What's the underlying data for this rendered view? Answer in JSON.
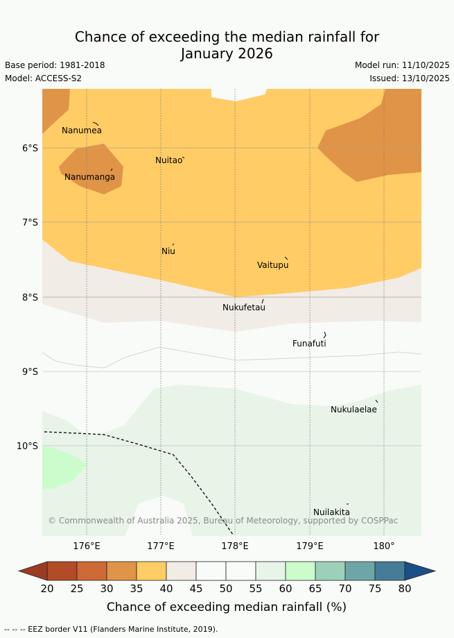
{
  "title_line1": "Chance of exceeding the median rainfall for",
  "title_line2": "January 2026",
  "meta": {
    "base_period": "Base period: 1981-2018",
    "model": "Model: ACCESS-S2",
    "model_run": "Model run: 11/10/2025",
    "issued": "Issued: 13/10/2025"
  },
  "map": {
    "lat_labels": [
      "6°S",
      "7°S",
      "8°S",
      "9°S",
      "10°S"
    ],
    "lon_labels": [
      "176°E",
      "177°E",
      "178°E",
      "179°E",
      "180°"
    ],
    "places": [
      "Nanumea",
      "Nuitao",
      "Nanumanga",
      "Niu",
      "Vaitupu",
      "Nukufetau",
      "Funafuti",
      "Nukulaelae",
      "Nuilakita"
    ],
    "copyright": "© Commonwealth of Australia 2025, Bureau of Meteorology, supported by COSPPac"
  },
  "colorbar": {
    "ticks": [
      "20",
      "25",
      "30",
      "35",
      "40",
      "45",
      "50",
      "55",
      "60",
      "65",
      "70",
      "75",
      "80"
    ],
    "colors": [
      "#b24b28",
      "#cd6a35",
      "#e09447",
      "#ffcc66",
      "#f1ece6",
      "#f9fbf8",
      "#f9fbf8",
      "#e8f4e8",
      "#ccfccc",
      "#9dd0b9",
      "#6ea6a8",
      "#477c99"
    ],
    "low_color": "#9c3a23",
    "high_color": "#1a4f87",
    "label": "Chance of exceeding median rainfall (%)"
  },
  "footer": "--  --  -- EEZ border V11 (Flanders Marine Institute, 2019)."
}
